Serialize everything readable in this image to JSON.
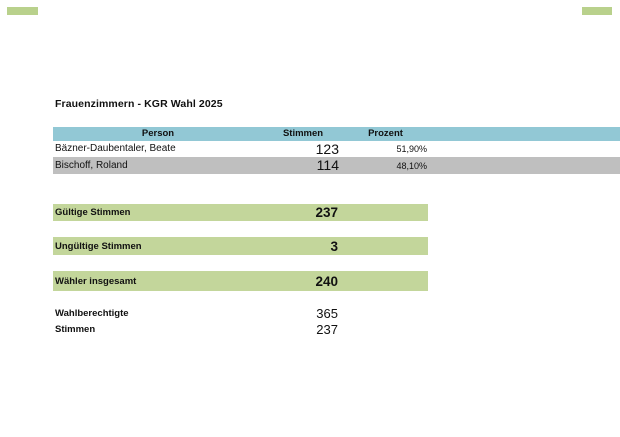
{
  "page": {
    "title": "Frauenzimmern - KGR Wahl 2025"
  },
  "colors": {
    "table_header_bg": "#92c8d5",
    "alt_row_bg": "#bfbfbf",
    "summary_bar_bg": "#c3d69b",
    "corner_fragment": "#b9d18c",
    "text": "#111111"
  },
  "results_table": {
    "columns": [
      "Person",
      "Stimmen",
      "Prozent"
    ],
    "rows": [
      {
        "person": "Bäzner-Daubentaler, Beate",
        "stimmen": "123",
        "prozent": "51,90%"
      },
      {
        "person": "Bischoff, Roland",
        "stimmen": "114",
        "prozent": "48,10%"
      }
    ]
  },
  "summary": {
    "items": [
      {
        "label": "Gültige Stimmen",
        "value": "237"
      },
      {
        "label": "Ungültige Stimmen",
        "value": "3"
      },
      {
        "label": "Wähler insgesamt",
        "value": "240"
      }
    ]
  },
  "stats": {
    "items": [
      {
        "label": "Wahlberechtigte",
        "value": "365"
      },
      {
        "label": "Stimmen",
        "value": "237"
      }
    ]
  }
}
